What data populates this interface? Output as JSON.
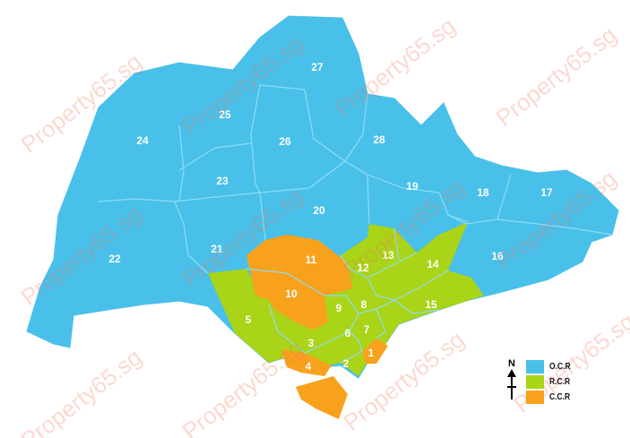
{
  "map": {
    "colors": {
      "ocr": "#48c0ea",
      "rcr": "#a9d417",
      "ccr": "#f8a11c",
      "border": "#8fdcf2"
    },
    "districts": [
      {
        "id": "1",
        "region": "ccr"
      },
      {
        "id": "2",
        "region": "rcr"
      },
      {
        "id": "3",
        "region": "rcr"
      },
      {
        "id": "4",
        "region": "ccr"
      },
      {
        "id": "5",
        "region": "rcr"
      },
      {
        "id": "6",
        "region": "rcr"
      },
      {
        "id": "7",
        "region": "rcr"
      },
      {
        "id": "8",
        "region": "rcr"
      },
      {
        "id": "9",
        "region": "ccr"
      },
      {
        "id": "10",
        "region": "ccr"
      },
      {
        "id": "11",
        "region": "ccr"
      },
      {
        "id": "12",
        "region": "rcr"
      },
      {
        "id": "13",
        "region": "rcr"
      },
      {
        "id": "14",
        "region": "rcr"
      },
      {
        "id": "15",
        "region": "rcr"
      },
      {
        "id": "16",
        "region": "ocr"
      },
      {
        "id": "17",
        "region": "ocr"
      },
      {
        "id": "18",
        "region": "ocr"
      },
      {
        "id": "19",
        "region": "ocr"
      },
      {
        "id": "20",
        "region": "ocr"
      },
      {
        "id": "21",
        "region": "ocr"
      },
      {
        "id": "22",
        "region": "ocr"
      },
      {
        "id": "23",
        "region": "ocr"
      },
      {
        "id": "24",
        "region": "ocr"
      },
      {
        "id": "25",
        "region": "ocr"
      },
      {
        "id": "26",
        "region": "ocr"
      },
      {
        "id": "27",
        "region": "ocr"
      },
      {
        "id": "28",
        "region": "ocr"
      }
    ]
  },
  "legend": {
    "north": "N",
    "items": [
      {
        "label": "O.C.R",
        "color": "#48c0ea"
      },
      {
        "label": "R.C.R",
        "color": "#a9d417"
      },
      {
        "label": "C.C.R",
        "color": "#f8a11c"
      }
    ]
  },
  "watermark": "Property65.sg"
}
